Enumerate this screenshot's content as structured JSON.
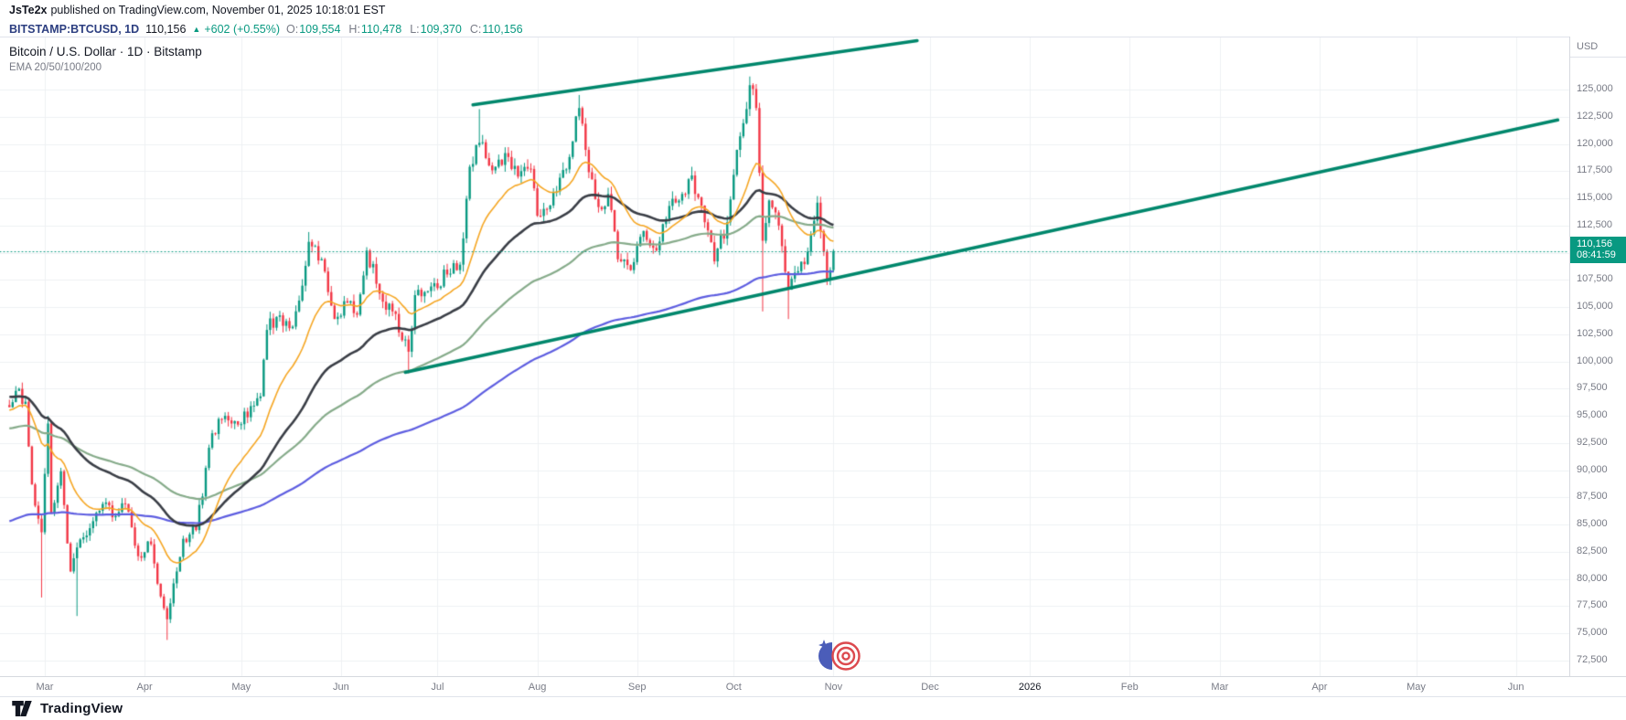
{
  "header": {
    "publisher": "JsTe2x",
    "published_info": "published on TradingView.com, November 01, 2025 10:18:01 EST"
  },
  "symbol_bar": {
    "symbol": "BITSTAMP:BTCUSD, 1D",
    "last_price": "110,156",
    "direction_icon": "▲",
    "change": "+602 (+0.55%)",
    "ohlc": [
      {
        "label": "O:",
        "value": "109,554"
      },
      {
        "label": "H:",
        "value": "110,478"
      },
      {
        "label": "L:",
        "value": "109,370"
      },
      {
        "label": "C:",
        "value": "110,156"
      }
    ]
  },
  "chart": {
    "title": "Bitcoin / U.S. Dollar · 1D · Bitstamp",
    "indicator_label": "EMA 20/50/100/200",
    "price_axis_unit": "USD",
    "price_badge": {
      "price": "110,156",
      "countdown": "08:41:59"
    }
  },
  "footer": {
    "brand": "TradingView"
  },
  "chart_data": {
    "type": "candlestick",
    "symbol": "BITSTAMP:BTCUSD",
    "interval": "1D",
    "exchange": "Bitstamp",
    "title": "Bitcoin / U.S. Dollar · 1D · Bitstamp",
    "last": {
      "price": 110156,
      "change": 602,
      "change_pct": 0.55,
      "open": 109554,
      "high": 110478,
      "low": 109370,
      "close": 110156,
      "countdown": "08:41:59"
    },
    "y_axis": {
      "unit": "USD",
      "tick_start": 72500,
      "tick_end": 125000,
      "tick_step": 2500
    },
    "x_axis": {
      "labels": [
        "Mar",
        "Apr",
        "May",
        "Jun",
        "Jul",
        "Aug",
        "Sep",
        "Oct",
        "Nov",
        "Dec",
        "2026",
        "Feb",
        "Mar",
        "Apr",
        "May",
        "Jun"
      ],
      "start_date": "2025-02-18",
      "end_date": "2026-06-30"
    },
    "grid": true,
    "ema_periods": [
      20,
      50,
      100,
      200
    ],
    "ema_seeds": [
      95500,
      96800,
      93800,
      85200
    ],
    "colors": {
      "up": "#089981",
      "down": "#f23645",
      "ema20": "#f5a623",
      "ema50": "#3a3e46",
      "ema100": "#86ab8a",
      "ema200": "#5d5de0",
      "trendline": "#00876c",
      "price_line": "#089981",
      "symbol_text": "#2c3e80"
    },
    "trendlines": [
      {
        "from": {
          "day": 144,
          "price": 123600
        },
        "to": {
          "day": 282,
          "price": 129500
        }
      },
      {
        "from": {
          "day": 123,
          "price": 99000
        },
        "to": {
          "day": 481,
          "price": 122200
        }
      }
    ],
    "anchors": [
      [
        0,
        95800
      ],
      [
        2,
        97300
      ],
      [
        5,
        96300
      ],
      [
        7,
        88700
      ],
      [
        10,
        84300,
        null,
        78300
      ],
      [
        12,
        94300,
        95000
      ],
      [
        13,
        86100
      ],
      [
        16,
        89900
      ],
      [
        19,
        80700
      ],
      [
        21,
        82900,
        null,
        76600
      ],
      [
        24,
        84000
      ],
      [
        29,
        86900
      ],
      [
        33,
        85800
      ],
      [
        36,
        86900
      ],
      [
        40,
        82100
      ],
      [
        44,
        83200
      ],
      [
        47,
        78400
      ],
      [
        49,
        76300,
        null,
        74400
      ],
      [
        51,
        79600
      ],
      [
        54,
        83700
      ],
      [
        58,
        84500
      ],
      [
        63,
        93400
      ],
      [
        66,
        94700
      ],
      [
        71,
        94200
      ],
      [
        75,
        95900
      ],
      [
        78,
        96800
      ],
      [
        80,
        102900
      ],
      [
        83,
        104100
      ],
      [
        88,
        103200
      ],
      [
        90,
        105600
      ],
      [
        93,
        111000,
        111900
      ],
      [
        97,
        109400
      ],
      [
        101,
        103900
      ],
      [
        105,
        105400
      ],
      [
        108,
        104300
      ],
      [
        111,
        110200
      ],
      [
        116,
        105500
      ],
      [
        119,
        104600
      ],
      [
        124,
        100900,
        null,
        98900
      ],
      [
        126,
        106100
      ],
      [
        132,
        107200
      ],
      [
        136,
        108000
      ],
      [
        140,
        108900
      ],
      [
        143,
        117900
      ],
      [
        146,
        120100,
        123200
      ],
      [
        148,
        118700
      ],
      [
        151,
        117900
      ],
      [
        155,
        118800
      ],
      [
        158,
        117000
      ],
      [
        162,
        117700
      ],
      [
        164,
        113400
      ],
      [
        167,
        114000
      ],
      [
        171,
        116900
      ],
      [
        174,
        118800
      ],
      [
        177,
        123300,
        124500
      ],
      [
        180,
        117400
      ],
      [
        183,
        114200
      ],
      [
        186,
        115400
      ],
      [
        189,
        109400
      ],
      [
        193,
        108400
      ],
      [
        197,
        112000
      ],
      [
        201,
        110200
      ],
      [
        205,
        114300
      ],
      [
        209,
        115400
      ],
      [
        212,
        117100,
        117900
      ],
      [
        216,
        112800
      ],
      [
        219,
        109200
      ],
      [
        223,
        112800
      ],
      [
        227,
        120700
      ],
      [
        230,
        125400,
        126200
      ],
      [
        232,
        123300
      ],
      [
        234,
        111100,
        null,
        104600
      ],
      [
        236,
        114800
      ],
      [
        239,
        112500
      ],
      [
        242,
        106600,
        null,
        103900
      ],
      [
        245,
        108300
      ],
      [
        248,
        110100
      ],
      [
        251,
        114600
      ],
      [
        254,
        107500
      ],
      [
        256,
        110156
      ]
    ]
  }
}
